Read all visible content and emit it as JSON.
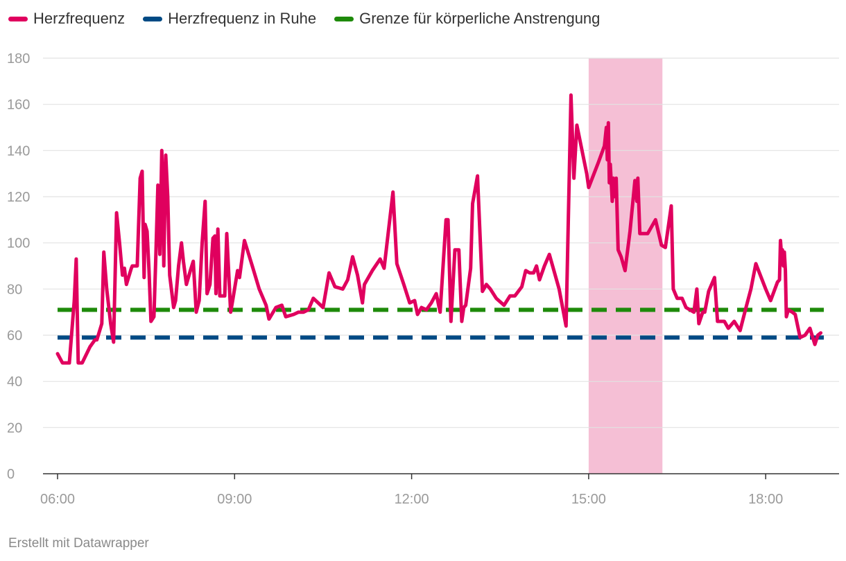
{
  "legend": {
    "items": [
      {
        "label": "Herzfrequenz",
        "color": "#e0005e"
      },
      {
        "label": "Herzfrequenz in Ruhe",
        "color": "#004a84"
      },
      {
        "label": "Grenze für körperliche Anstrengung",
        "color": "#1e8a0a"
      }
    ]
  },
  "credit": "Erstellt mit Datawrapper",
  "chart_data": {
    "type": "line",
    "xlabel": "",
    "ylabel": "",
    "xlim": [
      "06:00",
      "19:00"
    ],
    "ylim": [
      0,
      180
    ],
    "x_ticks": [
      "06:00",
      "09:00",
      "12:00",
      "15:00",
      "18:00"
    ],
    "y_ticks": [
      0,
      20,
      40,
      60,
      80,
      100,
      120,
      140,
      160,
      180
    ],
    "grid": "horizontal",
    "legend_position": "top-left",
    "highlight_range": {
      "start": "15:00",
      "end": "16:15",
      "color": "#f5bfd5"
    },
    "series": [
      {
        "name": "Herzfrequenz",
        "color": "#e0005e",
        "style": "solid",
        "points": [
          [
            "06:00",
            52
          ],
          [
            "06:05",
            48
          ],
          [
            "06:12",
            48
          ],
          [
            "06:17",
            75
          ],
          [
            "06:19",
            93
          ],
          [
            "06:21",
            48
          ],
          [
            "06:25",
            48
          ],
          [
            "06:33",
            55
          ],
          [
            "06:38",
            58
          ],
          [
            "06:40",
            58
          ],
          [
            "06:45",
            65
          ],
          [
            "06:47",
            96
          ],
          [
            "06:50",
            80
          ],
          [
            "06:54",
            65
          ],
          [
            "06:57",
            57
          ],
          [
            "07:00",
            113
          ],
          [
            "07:03",
            100
          ],
          [
            "07:06",
            86
          ],
          [
            "07:08",
            89
          ],
          [
            "07:10",
            82
          ],
          [
            "07:15",
            89
          ],
          [
            "07:16",
            90
          ],
          [
            "07:21",
            90
          ],
          [
            "07:24",
            128
          ],
          [
            "07:26",
            131
          ],
          [
            "07:28",
            85
          ],
          [
            "07:29",
            108
          ],
          [
            "07:31",
            105
          ],
          [
            "07:33",
            88
          ],
          [
            "07:35",
            66
          ],
          [
            "07:38",
            68
          ],
          [
            "07:40",
            95
          ],
          [
            "07:42",
            125
          ],
          [
            "07:44",
            95
          ],
          [
            "07:46",
            140
          ],
          [
            "07:47",
            125
          ],
          [
            "07:48",
            90
          ],
          [
            "07:50",
            138
          ],
          [
            "07:52",
            120
          ],
          [
            "07:54",
            86
          ],
          [
            "07:58",
            72
          ],
          [
            "08:00",
            75
          ],
          [
            "08:03",
            90
          ],
          [
            "08:06",
            100
          ],
          [
            "08:08",
            92
          ],
          [
            "08:11",
            82
          ],
          [
            "08:15",
            88
          ],
          [
            "08:18",
            92
          ],
          [
            "08:21",
            70
          ],
          [
            "08:24",
            75
          ],
          [
            "08:27",
            100
          ],
          [
            "08:30",
            118
          ],
          [
            "08:32",
            78
          ],
          [
            "08:35",
            82
          ],
          [
            "08:38",
            102
          ],
          [
            "08:40",
            103
          ],
          [
            "08:41",
            78
          ],
          [
            "08:43",
            106
          ],
          [
            "08:45",
            77
          ],
          [
            "08:50",
            77
          ],
          [
            "08:52",
            104
          ],
          [
            "08:56",
            70
          ],
          [
            "08:58",
            75
          ],
          [
            "09:03",
            88
          ],
          [
            "09:05",
            85
          ],
          [
            "09:10",
            101
          ],
          [
            "09:18",
            90
          ],
          [
            "09:25",
            80
          ],
          [
            "09:32",
            73
          ],
          [
            "09:35",
            67
          ],
          [
            "09:42",
            72
          ],
          [
            "09:48",
            73
          ],
          [
            "09:52",
            68
          ],
          [
            "10:00",
            69
          ],
          [
            "10:05",
            70
          ],
          [
            "10:10",
            70
          ],
          [
            "10:15",
            71
          ],
          [
            "10:20",
            76
          ],
          [
            "10:30",
            72
          ],
          [
            "10:36",
            87
          ],
          [
            "10:42",
            81
          ],
          [
            "10:50",
            80
          ],
          [
            "10:55",
            84
          ],
          [
            "11:00",
            94
          ],
          [
            "11:05",
            86
          ],
          [
            "11:10",
            74
          ],
          [
            "11:12",
            82
          ],
          [
            "11:20",
            88
          ],
          [
            "11:28",
            93
          ],
          [
            "11:32",
            89
          ],
          [
            "11:41",
            122
          ],
          [
            "11:45",
            91
          ],
          [
            "11:52",
            82
          ],
          [
            "11:58",
            74
          ],
          [
            "12:03",
            75
          ],
          [
            "12:06",
            69
          ],
          [
            "12:10",
            72
          ],
          [
            "12:15",
            71
          ],
          [
            "12:20",
            74
          ],
          [
            "12:25",
            78
          ],
          [
            "12:29",
            70
          ],
          [
            "12:35",
            110
          ],
          [
            "12:37",
            110
          ],
          [
            "12:40",
            66
          ],
          [
            "12:44",
            97
          ],
          [
            "12:48",
            97
          ],
          [
            "12:51",
            66
          ],
          [
            "12:53",
            72
          ],
          [
            "12:55",
            73
          ],
          [
            "13:00",
            89
          ],
          [
            "13:02",
            117
          ],
          [
            "13:07",
            129
          ],
          [
            "13:12",
            79
          ],
          [
            "13:16",
            82
          ],
          [
            "13:20",
            80
          ],
          [
            "13:26",
            76
          ],
          [
            "13:34",
            73
          ],
          [
            "13:40",
            77
          ],
          [
            "13:45",
            77
          ],
          [
            "13:52",
            81
          ],
          [
            "13:56",
            88
          ],
          [
            "14:00",
            87
          ],
          [
            "14:04",
            87
          ],
          [
            "14:07",
            90
          ],
          [
            "14:10",
            84
          ],
          [
            "14:15",
            90
          ],
          [
            "14:20",
            95
          ],
          [
            "14:30",
            80
          ],
          [
            "14:37",
            64
          ],
          [
            "14:42",
            164
          ],
          [
            "14:45",
            128
          ],
          [
            "14:48",
            151
          ],
          [
            "14:58",
            130
          ],
          [
            "15:00",
            124
          ],
          [
            "15:10",
            135
          ],
          [
            "15:16",
            142
          ],
          [
            "15:18",
            150
          ],
          [
            "15:19",
            136
          ],
          [
            "15:20",
            152
          ],
          [
            "15:21",
            126
          ],
          [
            "15:22",
            134
          ],
          [
            "15:24",
            118
          ],
          [
            "15:25",
            128
          ],
          [
            "15:26",
            120
          ],
          [
            "15:28",
            128
          ],
          [
            "15:30",
            97
          ],
          [
            "15:33",
            94
          ],
          [
            "15:37",
            88
          ],
          [
            "15:42",
            105
          ],
          [
            "15:47",
            127
          ],
          [
            "15:49",
            118
          ],
          [
            "15:50",
            128
          ],
          [
            "15:52",
            104
          ],
          [
            "15:57",
            104
          ],
          [
            "16:00",
            104
          ],
          [
            "16:08",
            110
          ],
          [
            "16:14",
            99
          ],
          [
            "16:18",
            98
          ],
          [
            "16:24",
            116
          ],
          [
            "16:26",
            80
          ],
          [
            "16:30",
            76
          ],
          [
            "16:35",
            76
          ],
          [
            "16:39",
            72
          ],
          [
            "16:47",
            70
          ],
          [
            "16:50",
            80
          ],
          [
            "16:52",
            65
          ],
          [
            "16:56",
            70
          ],
          [
            "16:58",
            70
          ],
          [
            "17:02",
            79
          ],
          [
            "17:08",
            85
          ],
          [
            "17:11",
            66
          ],
          [
            "17:18",
            66
          ],
          [
            "17:22",
            63
          ],
          [
            "17:28",
            66
          ],
          [
            "17:34",
            62
          ],
          [
            "17:40",
            72
          ],
          [
            "17:45",
            80
          ],
          [
            "17:50",
            91
          ],
          [
            "18:00",
            80
          ],
          [
            "18:05",
            75
          ],
          [
            "18:12",
            83
          ],
          [
            "18:14",
            84
          ],
          [
            "18:15",
            101
          ],
          [
            "18:16",
            95
          ],
          [
            "18:17",
            97
          ],
          [
            "18:18",
            90
          ],
          [
            "18:19",
            96
          ],
          [
            "18:20",
            88
          ],
          [
            "18:21",
            68
          ],
          [
            "18:23",
            71
          ],
          [
            "18:27",
            70
          ],
          [
            "18:30",
            69
          ],
          [
            "18:35",
            59
          ],
          [
            "18:40",
            60
          ],
          [
            "18:45",
            63
          ],
          [
            "18:50",
            56
          ],
          [
            "18:53",
            60
          ],
          [
            "18:56",
            61
          ]
        ]
      },
      {
        "name": "Herzfrequenz in Ruhe",
        "color": "#004a84",
        "style": "dashed",
        "points": [
          [
            "06:00",
            59
          ],
          [
            "19:00",
            59
          ]
        ]
      },
      {
        "name": "Grenze für körperliche Anstrengung",
        "color": "#1e8a0a",
        "style": "dashed",
        "points": [
          [
            "06:00",
            71
          ],
          [
            "19:00",
            71
          ]
        ]
      }
    ]
  }
}
